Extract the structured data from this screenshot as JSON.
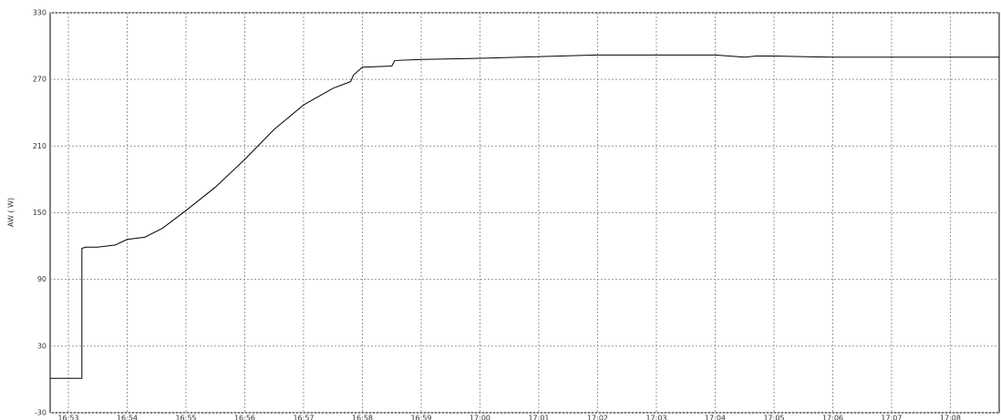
{
  "chart_data": {
    "type": "line",
    "y_label": "AW ( W)",
    "color": "#000000",
    "grid": true,
    "x": [
      1012.69,
      1013.23,
      1013.23,
      1013.3,
      1013.5,
      1013.8,
      1014.0,
      1014.3,
      1014.6,
      1015.0,
      1015.5,
      1016.0,
      1016.5,
      1017.0,
      1017.5,
      1017.8,
      1017.85,
      1018.0,
      1018.5,
      1018.55,
      1019.0,
      1020.0,
      1022.0,
      1024.0,
      1024.5,
      1024.7,
      1025.0,
      1026.0,
      1028.83
    ],
    "values": [
      1,
      1,
      118,
      119,
      119,
      121,
      126,
      128,
      136,
      152,
      173,
      198,
      225,
      247,
      262,
      268,
      274,
      281,
      282,
      287,
      288,
      289,
      292,
      292,
      290,
      291,
      291,
      290,
      290
    ],
    "xlim": [
      1012.69,
      1028.83
    ],
    "xticks": [
      {
        "value": 1013,
        "label": "16:53"
      },
      {
        "value": 1014,
        "label": "16:54"
      },
      {
        "value": 1015,
        "label": "16:55"
      },
      {
        "value": 1016,
        "label": "16:56"
      },
      {
        "value": 1017,
        "label": "16:57"
      },
      {
        "value": 1018,
        "label": "16:58"
      },
      {
        "value": 1019,
        "label": "16:59"
      },
      {
        "value": 1020,
        "label": "17:00"
      },
      {
        "value": 1021,
        "label": "17:01"
      },
      {
        "value": 1022,
        "label": "17:02"
      },
      {
        "value": 1023,
        "label": "17:03"
      },
      {
        "value": 1024,
        "label": "17:04"
      },
      {
        "value": 1025,
        "label": "17:05"
      },
      {
        "value": 1026,
        "label": "17:06"
      },
      {
        "value": 1027,
        "label": "17:07"
      },
      {
        "value": 1028,
        "label": "17:08"
      }
    ],
    "ylim": [
      -30,
      330
    ],
    "yticks": [
      -30,
      30,
      90,
      150,
      210,
      270,
      330
    ]
  }
}
